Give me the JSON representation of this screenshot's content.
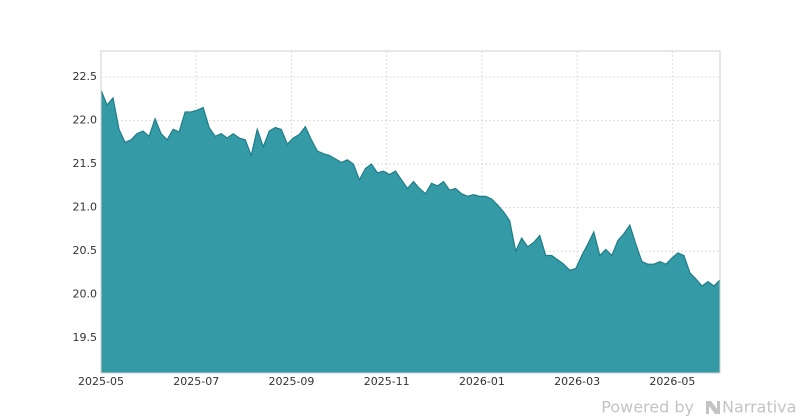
{
  "chart_data": {
    "type": "area",
    "color": "#339aa6",
    "line_color": "#1f7d88",
    "grid": true,
    "xlim": [
      "2025-05",
      "2026-06"
    ],
    "xticks": [
      "2025-05",
      "2025-07",
      "2025-09",
      "2025-11",
      "2026-01",
      "2026-03",
      "2026-05"
    ],
    "ylim": [
      19.1,
      22.8
    ],
    "yticks": [
      19.5,
      {
        "value": 20,
        "label": "20.0"
      },
      20.5,
      {
        "value": 21,
        "label": "21.0"
      },
      21.5,
      {
        "value": 22,
        "label": "22.0"
      },
      22.5
    ],
    "values": [
      22.35,
      22.18,
      22.26,
      21.9,
      21.75,
      21.78,
      21.85,
      21.88,
      21.82,
      22.02,
      21.85,
      21.78,
      21.9,
      21.87,
      22.1,
      22.1,
      22.12,
      22.15,
      21.92,
      21.82,
      21.85,
      21.8,
      21.85,
      21.8,
      21.78,
      21.6,
      21.9,
      21.7,
      21.88,
      21.92,
      21.9,
      21.73,
      21.8,
      21.84,
      21.93,
      21.78,
      21.65,
      21.62,
      21.6,
      21.56,
      21.52,
      21.55,
      21.5,
      21.32,
      21.45,
      21.5,
      21.4,
      21.42,
      21.38,
      21.42,
      21.32,
      21.22,
      21.3,
      21.22,
      21.16,
      21.28,
      21.25,
      21.3,
      21.2,
      21.22,
      21.16,
      21.13,
      21.15,
      21.13,
      21.13,
      21.1,
      21.03,
      20.95,
      20.85,
      20.5,
      20.65,
      20.55,
      20.6,
      20.68,
      20.45,
      20.45,
      20.4,
      20.35,
      20.28,
      20.3,
      20.45,
      20.58,
      20.72,
      20.45,
      20.52,
      20.45,
      20.62,
      20.7,
      20.8,
      20.58,
      20.38,
      20.35,
      20.35,
      20.38,
      20.35,
      20.42,
      20.48,
      20.45,
      20.25,
      20.18,
      20.1,
      20.15,
      20.1,
      20.17
    ]
  },
  "footer": {
    "prefix": "Powered by",
    "brand": "Narrativa"
  }
}
